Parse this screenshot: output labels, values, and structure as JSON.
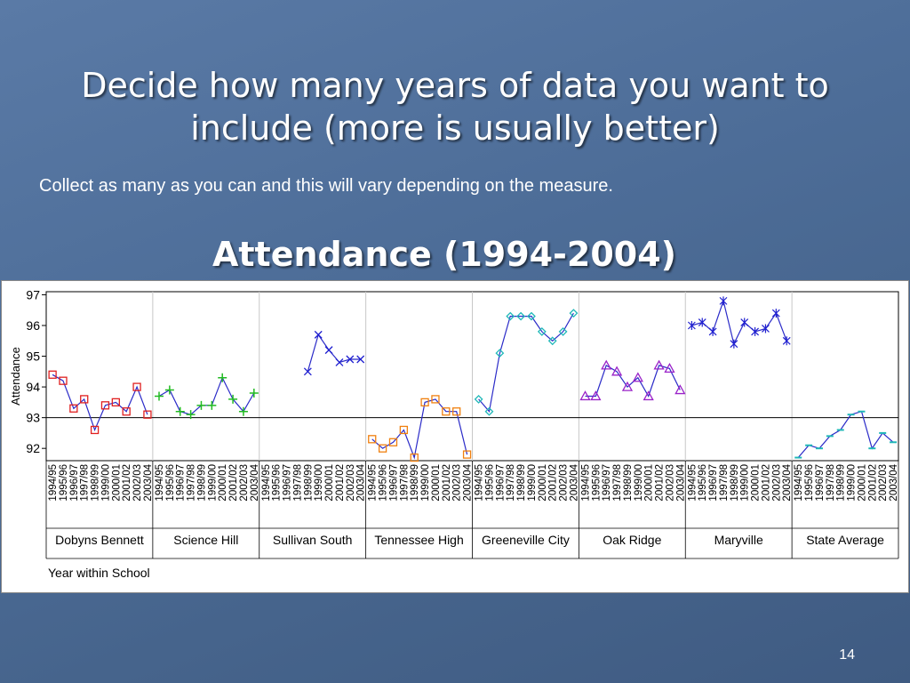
{
  "slide": {
    "title": "Decide how many years of data you want to include (more is usually better)",
    "subtitle": "Collect as many as you can and this will vary depending on the measure.",
    "chart_heading": "Attendance (1994-2004)",
    "slide_number": "14"
  },
  "chart_data": {
    "type": "line",
    "title": "Attendance (1994-2004)",
    "ylabel": "Attendance",
    "xlabel": "Year within School",
    "ylim": [
      91.6,
      97.1
    ],
    "yticks": [
      92,
      93,
      94,
      95,
      96,
      97
    ],
    "reference_line": 93,
    "years": [
      "1994/95",
      "1995/96",
      "1996/97",
      "1997/98",
      "1998/99",
      "1999/00",
      "2000/01",
      "2001/02",
      "2002/03",
      "2003/04"
    ],
    "line_color": "#2b2bc8",
    "groups": [
      {
        "name": "Dobyns Bennett",
        "marker": "square",
        "color": "#e02020",
        "values": [
          94.4,
          94.2,
          93.3,
          93.6,
          92.6,
          93.4,
          93.5,
          93.2,
          94.0,
          93.1
        ]
      },
      {
        "name": "Science Hill",
        "marker": "plus",
        "color": "#22bb22",
        "values": [
          93.7,
          93.9,
          93.2,
          93.1,
          93.4,
          93.4,
          94.3,
          93.6,
          93.2,
          93.8
        ]
      },
      {
        "name": "Sullivan South",
        "marker": "x",
        "color": "#2020d0",
        "values": [
          null,
          null,
          null,
          null,
          94.5,
          95.7,
          95.2,
          94.8,
          94.9,
          94.9
        ]
      },
      {
        "name": "Tennessee High",
        "marker": "square",
        "color": "#f08010",
        "values": [
          92.3,
          92.0,
          92.2,
          92.6,
          91.7,
          93.5,
          93.6,
          93.2,
          93.2,
          91.8
        ]
      },
      {
        "name": "Greeneville City",
        "marker": "diamond",
        "color": "#20b8b8",
        "values": [
          93.6,
          93.2,
          95.1,
          96.3,
          96.3,
          96.3,
          95.8,
          95.5,
          95.8,
          96.4
        ]
      },
      {
        "name": "Oak Ridge",
        "marker": "triangle",
        "color": "#9a22c8",
        "values": [
          93.7,
          93.7,
          94.7,
          94.5,
          94.0,
          94.3,
          93.7,
          94.7,
          94.6,
          93.9
        ]
      },
      {
        "name": "Maryville",
        "marker": "asterisk",
        "color": "#2020d0",
        "values": [
          96.0,
          96.1,
          95.8,
          96.8,
          95.4,
          96.1,
          95.8,
          95.9,
          96.4,
          95.5
        ]
      },
      {
        "name": "State Average",
        "marker": "dash",
        "color": "#20b8b8",
        "values": [
          91.7,
          92.1,
          92.0,
          92.4,
          92.6,
          93.1,
          93.2,
          92.0,
          92.5,
          92.2
        ]
      }
    ]
  }
}
